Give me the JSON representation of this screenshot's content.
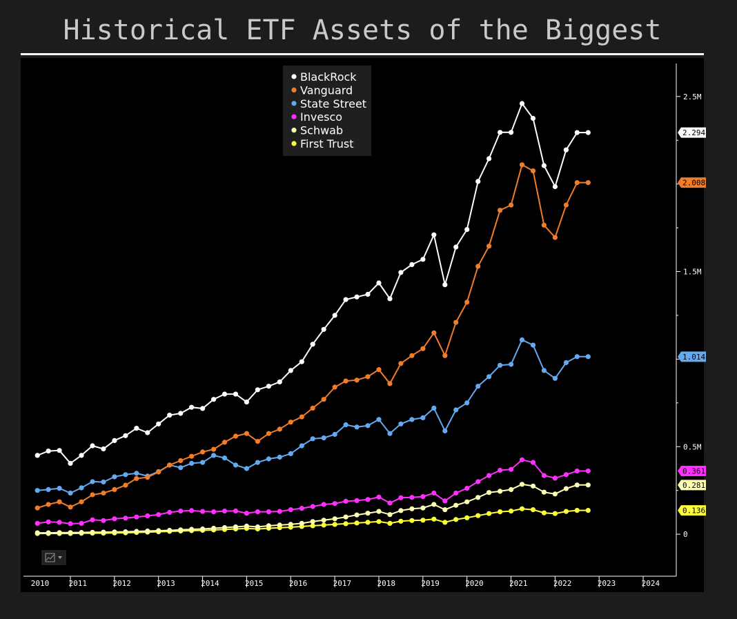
{
  "header": {
    "title": "Historical ETF Assets of the Biggest Issuers"
  },
  "toolbar": {
    "chart_type_icon": "line-chart-icon",
    "dropdown_icon": "chevron-down-icon"
  },
  "colors": {
    "page_background": "#1c1c1c",
    "plot_background": "#000000",
    "BlackRock": "#ffffff",
    "Vanguard": "#f07d2a",
    "State Street": "#64aaf0",
    "Invesco": "#ff2fff",
    "Schwab": "#ffffb4",
    "First Trust": "#ffff3a"
  },
  "chart_data": {
    "type": "line",
    "title": "Historical ETF Assets of the Biggest Issuers",
    "xlabel": "",
    "ylabel": "",
    "x_axis_labels": [
      "2010",
      "2011",
      "2012",
      "2013",
      "2014",
      "2015",
      "2016",
      "2017",
      "2018",
      "2019",
      "2020",
      "2021",
      "2022",
      "2023",
      "2024"
    ],
    "y_axis_labels": [
      "0",
      "0.5M",
      "1.5M",
      "2.5M"
    ],
    "y_ticks": [
      0,
      500000,
      1500000,
      2500000
    ],
    "ylim": [
      -240000,
      2720000
    ],
    "xlim": [
      2010.0,
      2024.8
    ],
    "y_axis_side": "right",
    "grid": false,
    "legend_position": "top-center",
    "x": [
      2010.3,
      2010.55,
      2010.8,
      2011.05,
      2011.3,
      2011.55,
      2011.8,
      2012.05,
      2012.3,
      2012.55,
      2012.8,
      2013.05,
      2013.3,
      2013.55,
      2013.8,
      2014.05,
      2014.3,
      2014.55,
      2014.8,
      2015.05,
      2015.3,
      2015.55,
      2015.8,
      2016.05,
      2016.3,
      2016.55,
      2016.8,
      2017.05,
      2017.3,
      2017.55,
      2017.8,
      2018.05,
      2018.3,
      2018.55,
      2018.8,
      2019.05,
      2019.3,
      2019.55,
      2019.8,
      2020.05,
      2020.3,
      2020.55,
      2020.8,
      2021.05,
      2021.3,
      2021.55,
      2021.8,
      2022.05,
      2022.3,
      2022.55,
      2022.8
    ],
    "series": [
      {
        "name": "BlackRock",
        "last_value_label": "2.294",
        "values": [
          450000,
          475000,
          478000,
          405000,
          450000,
          505000,
          487000,
          535000,
          563000,
          605000,
          580000,
          630000,
          680000,
          690000,
          725000,
          718000,
          770000,
          800000,
          800000,
          755000,
          825000,
          845000,
          870000,
          935000,
          985000,
          1085000,
          1170000,
          1250000,
          1340000,
          1355000,
          1370000,
          1435000,
          1345000,
          1495000,
          1540000,
          1570000,
          1710000,
          1425000,
          1640000,
          1740000,
          2015000,
          2145000,
          2295000,
          2295000,
          2460000,
          2375000,
          2105000,
          1985000,
          2195000,
          2294000,
          2294000
        ]
      },
      {
        "name": "Vanguard",
        "last_value_label": "2.008",
        "values": [
          150000,
          170000,
          185000,
          155000,
          185000,
          225000,
          235000,
          255000,
          280000,
          318000,
          325000,
          355000,
          395000,
          420000,
          445000,
          470000,
          485000,
          525000,
          560000,
          575000,
          530000,
          575000,
          600000,
          640000,
          670000,
          720000,
          770000,
          840000,
          875000,
          880000,
          900000,
          940000,
          860000,
          975000,
          1020000,
          1060000,
          1150000,
          1020000,
          1210000,
          1325000,
          1530000,
          1645000,
          1850000,
          1880000,
          2110000,
          2075000,
          1765000,
          1695000,
          1880000,
          2008000,
          2008000
        ]
      },
      {
        "name": "State Street",
        "last_value_label": "1.014",
        "values": [
          250000,
          255000,
          262000,
          235000,
          265000,
          300000,
          298000,
          328000,
          340000,
          348000,
          332000,
          358000,
          395000,
          380000,
          405000,
          410000,
          450000,
          435000,
          395000,
          375000,
          410000,
          430000,
          440000,
          460000,
          505000,
          545000,
          550000,
          570000,
          625000,
          612000,
          620000,
          655000,
          575000,
          630000,
          655000,
          665000,
          720000,
          590000,
          710000,
          750000,
          845000,
          900000,
          965000,
          970000,
          1110000,
          1080000,
          935000,
          890000,
          980000,
          1014000,
          1014000
        ]
      },
      {
        "name": "Invesco",
        "last_value_label": "0.361",
        "values": [
          62000,
          70000,
          68000,
          60000,
          62000,
          82000,
          78000,
          88000,
          92000,
          98000,
          105000,
          112000,
          125000,
          132000,
          135000,
          130000,
          128000,
          132000,
          133000,
          120000,
          128000,
          128000,
          130000,
          140000,
          148000,
          158000,
          170000,
          175000,
          188000,
          192000,
          198000,
          212000,
          178000,
          208000,
          210000,
          215000,
          235000,
          190000,
          235000,
          262000,
          300000,
          335000,
          365000,
          370000,
          425000,
          410000,
          335000,
          320000,
          340000,
          361000,
          361000
        ]
      },
      {
        "name": "Schwab",
        "last_value_label": "0.281",
        "values": [
          8000,
          8000,
          9000,
          9000,
          10000,
          11000,
          12000,
          13000,
          14000,
          16000,
          18000,
          20000,
          22000,
          25000,
          28000,
          30000,
          34000,
          38000,
          42000,
          46000,
          42000,
          48000,
          52000,
          56000,
          62000,
          72000,
          80000,
          88000,
          98000,
          110000,
          120000,
          130000,
          112000,
          135000,
          145000,
          150000,
          170000,
          140000,
          165000,
          185000,
          210000,
          238000,
          245000,
          255000,
          285000,
          275000,
          240000,
          230000,
          260000,
          281000,
          281000
        ]
      },
      {
        "name": "First Trust",
        "last_value_label": "0.136",
        "values": [
          4000,
          4000,
          4000,
          4000,
          5000,
          6000,
          6000,
          7000,
          8000,
          10000,
          12000,
          14000,
          16000,
          18000,
          20000,
          22000,
          24000,
          27000,
          30000,
          33000,
          30000,
          34000,
          37000,
          40000,
          44000,
          48000,
          52000,
          56000,
          60000,
          64000,
          68000,
          72000,
          62000,
          74000,
          78000,
          80000,
          86000,
          68000,
          84000,
          94000,
          106000,
          118000,
          128000,
          132000,
          145000,
          140000,
          122000,
          118000,
          130000,
          136000,
          136000
        ]
      }
    ]
  }
}
